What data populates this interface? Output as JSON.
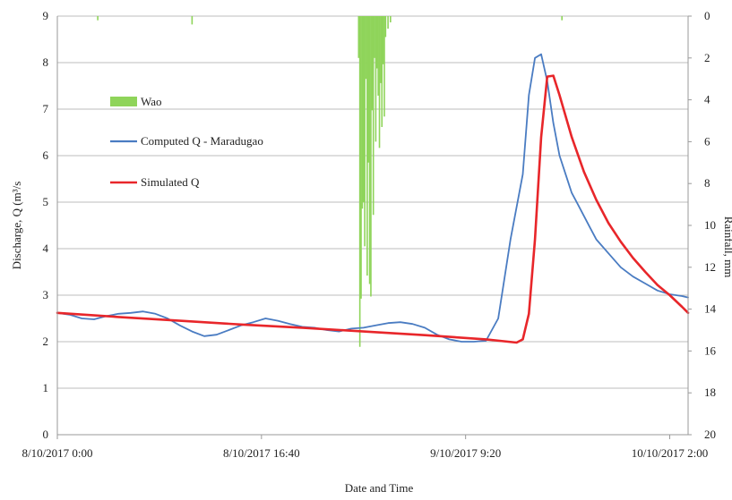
{
  "chart_data": {
    "type": "line",
    "xlabel": "Date and Time",
    "ylabel": "Discharge, Q (m³/s",
    "y2label": "Rainfall, mm",
    "x_tick_labels": [
      "8/10/2017 0:00",
      "8/10/2017 16:40",
      "9/10/2017 9:20",
      "10/10/2017 2:00"
    ],
    "x_tick_hours": [
      0,
      16.6667,
      33.3333,
      50
    ],
    "xlim_hours": [
      0,
      51.5
    ],
    "ylim": [
      0,
      9
    ],
    "yticks": [
      0,
      1,
      2,
      3,
      4,
      5,
      6,
      7,
      8,
      9
    ],
    "y2lim_inverted": [
      20,
      0
    ],
    "y2ticks": [
      0,
      2,
      4,
      6,
      8,
      10,
      12,
      14,
      16,
      18,
      20
    ],
    "grid": true,
    "legend_position": "upper-left",
    "colors": {
      "computed": "#4a7cc2",
      "simulated": "#e8262a",
      "rainfall": "#8fd45a",
      "grid": "#bdbdbd",
      "axis": "#9a9a9a"
    },
    "series": [
      {
        "name": "Computed Q - Maradugao",
        "kind": "line",
        "x_hours": [
          0,
          1,
          2,
          3,
          4,
          5,
          6,
          7,
          8,
          9,
          10,
          11,
          12,
          13,
          14,
          15,
          16,
          17,
          18,
          19,
          20,
          21,
          22,
          23,
          24,
          25,
          26,
          27,
          28,
          29,
          30,
          31,
          32,
          33,
          34,
          35,
          36,
          37,
          38,
          38.5,
          39,
          39.5,
          40,
          40.5,
          41,
          41.5,
          42,
          42.5,
          43,
          43.5,
          44,
          45,
          46,
          47,
          48,
          49,
          50,
          51,
          51.5
        ],
        "values": [
          2.62,
          2.58,
          2.5,
          2.48,
          2.55,
          2.6,
          2.62,
          2.65,
          2.6,
          2.5,
          2.35,
          2.22,
          2.12,
          2.15,
          2.25,
          2.35,
          2.42,
          2.5,
          2.45,
          2.38,
          2.32,
          2.3,
          2.25,
          2.22,
          2.28,
          2.3,
          2.35,
          2.4,
          2.42,
          2.38,
          2.3,
          2.15,
          2.05,
          2.0,
          2.0,
          2.02,
          2.5,
          4.2,
          5.6,
          7.3,
          8.1,
          8.18,
          7.6,
          6.7,
          6.0,
          5.6,
          5.2,
          4.95,
          4.7,
          4.45,
          4.2,
          3.9,
          3.6,
          3.4,
          3.25,
          3.1,
          3.02,
          2.98,
          2.95
        ]
      },
      {
        "name": "Simulated Q",
        "kind": "line",
        "x_hours": [
          0,
          5,
          10,
          15,
          20,
          25,
          30,
          35,
          37.5,
          38,
          38.5,
          39,
          39.5,
          40,
          40.5,
          41,
          42,
          43,
          44,
          45,
          46,
          47,
          48,
          49,
          50,
          51,
          51.5
        ],
        "values": [
          2.62,
          2.53,
          2.45,
          2.37,
          2.3,
          2.22,
          2.14,
          2.05,
          1.98,
          2.05,
          2.6,
          4.2,
          6.4,
          7.7,
          7.72,
          7.3,
          6.4,
          5.65,
          5.05,
          4.55,
          4.15,
          3.8,
          3.5,
          3.22,
          3.0,
          2.75,
          2.62
        ]
      },
      {
        "name": "Wao",
        "kind": "bar",
        "axis": "secondary",
        "x_hours": [
          3.3,
          11.0,
          24.6,
          24.7,
          24.8,
          24.9,
          25.0,
          25.1,
          25.2,
          25.3,
          25.4,
          25.5,
          25.6,
          25.7,
          25.8,
          25.9,
          26.0,
          26.1,
          26.2,
          26.3,
          26.4,
          26.5,
          26.6,
          26.7,
          26.8,
          27.0,
          27.2,
          41.2
        ],
        "values": [
          0.2,
          0.4,
          2.0,
          15.8,
          13.5,
          9.2,
          8.9,
          11.0,
          3.0,
          12.4,
          7.0,
          12.8,
          13.4,
          4.5,
          9.5,
          2.0,
          6.0,
          2.5,
          3.8,
          6.3,
          3.2,
          5.3,
          2.3,
          4.8,
          1.0,
          0.6,
          0.3,
          0.2
        ]
      }
    ]
  }
}
